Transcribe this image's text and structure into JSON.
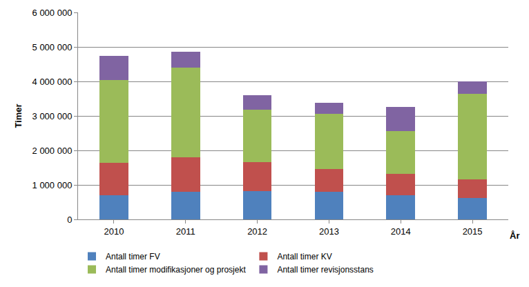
{
  "chart_data": {
    "type": "bar",
    "stacked": true,
    "y_label": "Timer",
    "x_label": "År",
    "categories": [
      "2010",
      "2011",
      "2012",
      "2013",
      "2014",
      "2015"
    ],
    "series": [
      {
        "name": "Antall timer FV",
        "color": "#4f81bd",
        "values": [
          700000,
          810000,
          820000,
          810000,
          700000,
          630000
        ]
      },
      {
        "name": "Antall timer KV",
        "color": "#c0504d",
        "values": [
          950000,
          1000000,
          850000,
          650000,
          630000,
          530000
        ]
      },
      {
        "name": "Antall timer modifikasjoner og prosjekt",
        "color": "#9bbb59",
        "values": [
          2390000,
          2590000,
          1510000,
          1610000,
          1230000,
          2490000
        ]
      },
      {
        "name": "Antall timer revisjonsstans",
        "color": "#8064a2",
        "values": [
          710000,
          460000,
          430000,
          320000,
          700000,
          350000
        ]
      }
    ],
    "ylim": [
      0,
      6000000
    ],
    "yticks": [
      0,
      {
        "value": 1000000,
        "label": "1 000 000"
      },
      {
        "value": 2000000,
        "label": "2 000 000"
      },
      {
        "value": 3000000,
        "label": "3 000 000"
      },
      {
        "value": 4000000,
        "label": "4 000 000"
      },
      {
        "value": 5000000,
        "label": "5 000 000"
      },
      {
        "value": 6000000,
        "label": "6 000 000"
      }
    ],
    "grid": true,
    "legend": "bottom"
  }
}
